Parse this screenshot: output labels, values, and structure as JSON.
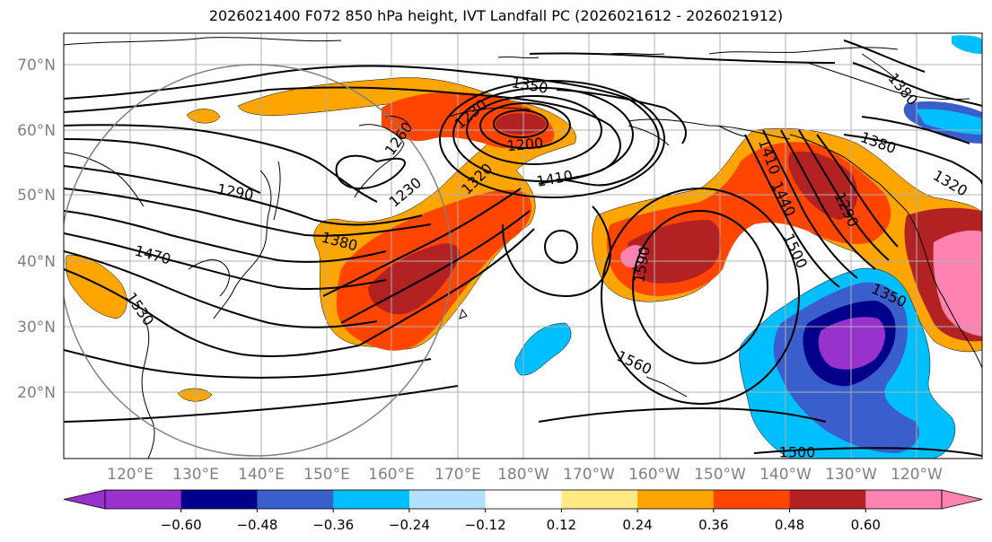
{
  "title": "2026021400 F072 850 hPa height, IVT Landfall PC (2026021612 - 2026021912)",
  "map": {
    "lat_labels": [
      "70°N",
      "60°N",
      "50°N",
      "40°N",
      "30°N",
      "20°N"
    ],
    "lon_labels": [
      "120°E",
      "130°E",
      "140°E",
      "150°E",
      "160°E",
      "170°E",
      "180°W",
      "170°W",
      "160°W",
      "150°W",
      "140°W",
      "130°W",
      "120°W"
    ],
    "contour_labels": [
      "1350",
      "1230",
      "1200",
      "1260",
      "1320",
      "1410",
      "1290",
      "1230",
      "1380",
      "1470",
      "1530",
      "1560",
      "1590",
      "1410",
      "1440",
      "1500",
      "1290",
      "1380",
      "1320",
      "1380",
      "1350",
      "1500"
    ]
  },
  "colorbar": {
    "tick_labels": [
      "−0.60",
      "−0.48",
      "−0.36",
      "−0.24",
      "−0.12",
      "0.12",
      "0.24",
      "0.36",
      "0.48",
      "0.60"
    ],
    "colors": [
      "#9932cc",
      "#00008b",
      "#3a5fcd",
      "#00bfff",
      "#b0e2ff",
      "#ffffff",
      "#ffe985",
      "#ffa500",
      "#ff4500",
      "#b22222",
      "#ff83b0"
    ]
  },
  "colors": {
    "grid": "#b0b0b0",
    "label_gray": "#808080",
    "contour": "#000000"
  }
}
